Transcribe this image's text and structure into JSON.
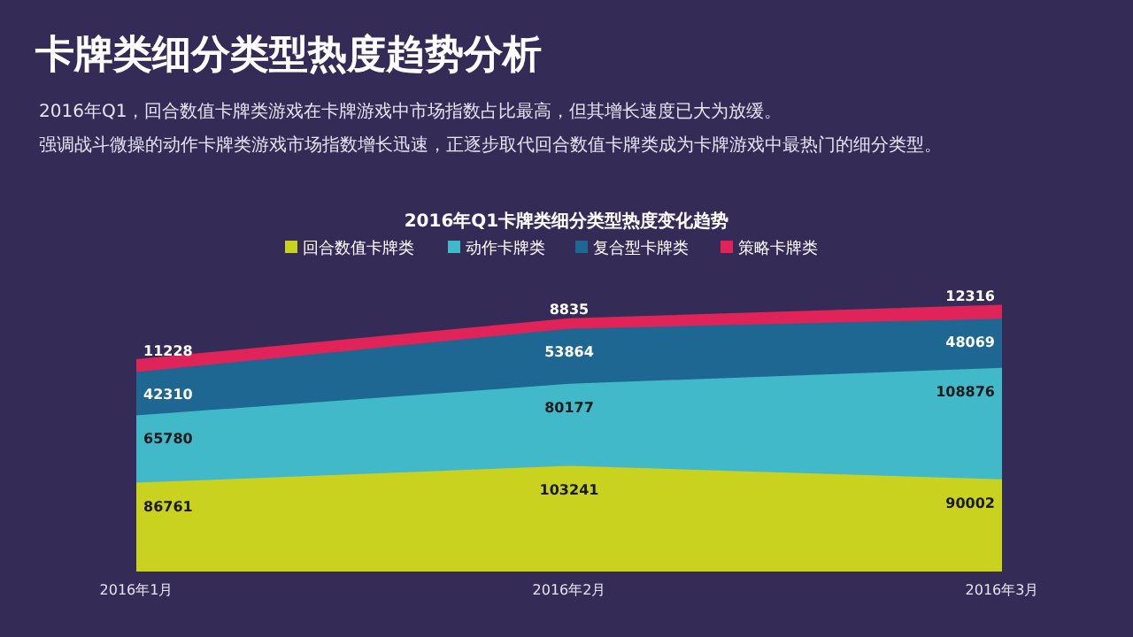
{
  "chart_data": {
    "type": "area",
    "stacked": true,
    "title": "卡牌类细分类型热度趋势分析",
    "subtitle": "2016年Q1卡牌类细分类型热度变化趋势",
    "annotations": [
      "2016年Q1，回合数值卡牌类游戏在卡牌游戏中市场指数占比最高，但其增长速度已大为放缓。",
      "强调战斗微操的动作卡牌类游戏市场指数增长迅速，正逐步取代回合数值卡牌类成为卡牌游戏中最热门的细分类型。"
    ],
    "categories": [
      "2016年1月",
      "2016年2月",
      "2016年3月"
    ],
    "series": [
      {
        "name": "回合数值卡牌类",
        "color": "#c9d21f",
        "values": [
          86761,
          103241,
          90002
        ]
      },
      {
        "name": "动作卡牌类",
        "color": "#41b9c8",
        "values": [
          65780,
          80177,
          108876
        ]
      },
      {
        "name": "复合型卡牌类",
        "color": "#1d6792",
        "values": [
          42310,
          53864,
          48069
        ]
      },
      {
        "name": "策略卡牌类",
        "color": "#e0245a",
        "values": [
          11228,
          8835,
          12316
        ]
      }
    ],
    "data_labels": true,
    "legend": "top",
    "grid": false
  }
}
